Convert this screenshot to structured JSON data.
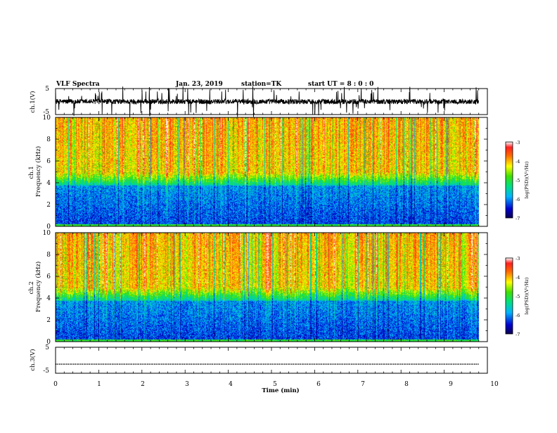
{
  "header": {
    "title": "VLF Spectra",
    "date": "Jan. 23, 2019",
    "station": "station=TK",
    "start_ut": "start UT = 8 : 0 : 0"
  },
  "chart_data": [
    {
      "type": "line",
      "panel": "ch1-waveform",
      "ylabel": "ch.1(V)",
      "ylim": [
        -5,
        5
      ],
      "yticks": [
        "5",
        "-5"
      ],
      "xlim": [
        0,
        10
      ],
      "baseline_value": 0,
      "typical_noise_amplitude": 1.5
    },
    {
      "type": "heatmap",
      "panel": "ch1-spectrogram",
      "ylabel": "ch.1\nFrequency (kHz)",
      "ylim": [
        0,
        10
      ],
      "yticks": [
        "0",
        "2",
        "4",
        "6",
        "8",
        "10"
      ],
      "xlim": [
        0,
        10
      ],
      "data_end_min": 9.8,
      "colorbar": {
        "label": "log(PSD)(V²/Hz)",
        "range": [
          -7,
          -3
        ],
        "ticks": [
          "-3",
          "-4",
          "-5",
          "-6",
          "-7"
        ]
      }
    },
    {
      "type": "heatmap",
      "panel": "ch2-spectrogram",
      "ylabel": "ch.2\nFrequency (kHz)",
      "ylim": [
        0,
        10
      ],
      "yticks": [
        "0",
        "2",
        "4",
        "6",
        "8",
        "10"
      ],
      "xlim": [
        0,
        10
      ],
      "data_end_min": 9.8,
      "colorbar": {
        "label": "log(PSD)(V²/Hz)",
        "range": [
          -7,
          -3
        ],
        "ticks": [
          "-3",
          "-4",
          "-5",
          "-6",
          "-7"
        ]
      }
    },
    {
      "type": "line",
      "panel": "ch3-waveform",
      "ylabel": "ch.3(V)",
      "ylim": [
        -5,
        5
      ],
      "yticks": [
        "5",
        "-5"
      ],
      "xlim": [
        0,
        10
      ],
      "constant_value": -1.5
    }
  ],
  "x_axis": {
    "label": "Time (min)",
    "ticks": [
      "0",
      "1",
      "2",
      "3",
      "4",
      "5",
      "6",
      "7",
      "8",
      "9",
      "10"
    ]
  }
}
